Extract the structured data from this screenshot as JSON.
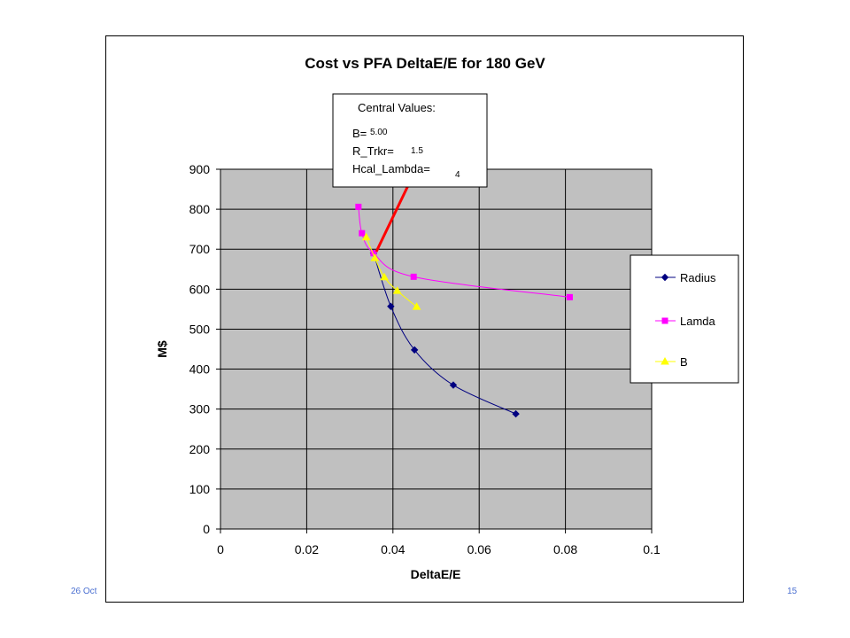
{
  "footer": {
    "left_text": "26 Oct",
    "page_number": "15"
  },
  "annotation": {
    "heading": "Central  Values:",
    "rows": [
      {
        "label": "B=",
        "value": "5.00"
      },
      {
        "label": "R_Trkr=",
        "value": "1.5"
      },
      {
        "label": "Hcal_Lambda=",
        "value": "4"
      }
    ],
    "arrow_color": "#ff0000"
  },
  "chart_data": {
    "type": "scatter",
    "title": "Cost vs PFA  DeltaE/E for 180 GeV",
    "xlabel": "DeltaE/E",
    "ylabel": "M$",
    "xlim": [
      0,
      0.1
    ],
    "ylim": [
      0,
      900
    ],
    "x_ticks": [
      "0",
      "0.02",
      "0.04",
      "0.06",
      "0.08",
      "0.1"
    ],
    "y_ticks": [
      "0",
      "100",
      "200",
      "300",
      "400",
      "500",
      "600",
      "700",
      "800",
      "900"
    ],
    "grid": true,
    "plot_background": "#c0c0c0",
    "legend_position": "right",
    "series": [
      {
        "name": "Radius",
        "color": "#000080",
        "marker": "diamond",
        "points": [
          [
            0.0355,
            690
          ],
          [
            0.0395,
            557
          ],
          [
            0.045,
            448
          ],
          [
            0.054,
            360
          ],
          [
            0.0685,
            288
          ]
        ]
      },
      {
        "name": "Lamda",
        "color": "#ff00ff",
        "marker": "square",
        "points": [
          [
            0.032,
            806
          ],
          [
            0.0328,
            740
          ],
          [
            0.0355,
            690
          ],
          [
            0.0448,
            631
          ],
          [
            0.081,
            580
          ]
        ]
      },
      {
        "name": "B",
        "color": "#ffff00",
        "marker": "triangle",
        "points": [
          [
            0.0338,
            730
          ],
          [
            0.0358,
            678
          ],
          [
            0.038,
            630
          ],
          [
            0.041,
            596
          ],
          [
            0.0455,
            556
          ]
        ]
      }
    ]
  }
}
